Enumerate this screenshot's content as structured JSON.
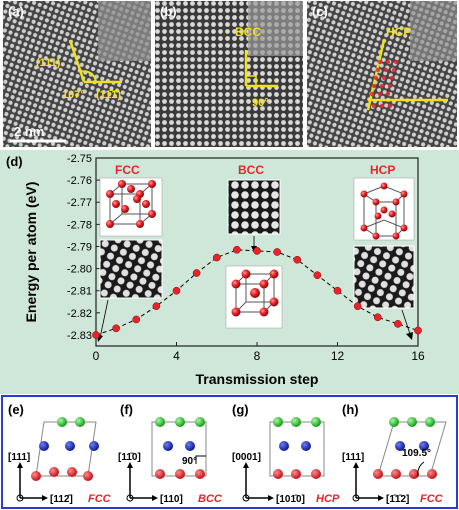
{
  "panels_top": {
    "a": {
      "label": "(a)",
      "plane1": "(111)",
      "plane2": "(11̄1̄)",
      "angle": "107°",
      "scalebar": "2 nm"
    },
    "b": {
      "label": "(b)",
      "phase": "BCC",
      "angle": "90°"
    },
    "c": {
      "label": "(c)",
      "phase": "HCP"
    }
  },
  "panel_d": {
    "label": "(d)",
    "insets": {
      "fcc": "FCC",
      "bcc": "BCC",
      "hcp": "HCP"
    }
  },
  "chart_data": {
    "type": "line",
    "title": "",
    "xlabel": "Transmission step",
    "ylabel": "Energy per atom  (eV)",
    "xlim": [
      0,
      16
    ],
    "ylim": [
      -2.835,
      -2.75
    ],
    "xticks": [
      "0",
      "4",
      "8",
      "12",
      "16"
    ],
    "yticks": [
      "-2.75",
      "-2.76",
      "-2.77",
      "-2.78",
      "-2.79",
      "-2.80",
      "-2.81",
      "-2.82",
      "-2.83"
    ],
    "x": [
      0,
      1,
      2,
      3,
      4,
      5,
      6,
      7,
      8,
      9,
      10,
      11,
      12,
      13,
      14,
      15,
      16
    ],
    "y": [
      -2.83,
      -2.827,
      -2.823,
      -2.817,
      -2.81,
      -2.802,
      -2.795,
      -2.7915,
      -2.792,
      -2.7925,
      -2.796,
      -2.803,
      -2.81,
      -2.817,
      -2.822,
      -2.825,
      -2.828
    ],
    "marker_color": "#e8242a",
    "background": "#cfe7d9"
  },
  "panels_bottom": [
    {
      "label": "(e)",
      "dir_up": "[111]",
      "dir_right": "[112̄]",
      "phase": "FCC"
    },
    {
      "label": "(f)",
      "dir_up": "[11̄0]",
      "dir_right": "[110]",
      "phase": "BCC",
      "angle": "90°"
    },
    {
      "label": "(g)",
      "dir_up": "[0001]",
      "dir_right": "[101̄0]",
      "phase": "HCP"
    },
    {
      "label": "(h)",
      "dir_up": "[111]",
      "dir_right": "[1̄1̄2]",
      "phase": "FCC",
      "angle": "109.5°"
    }
  ],
  "colors": {
    "yellow": "#f2e21a",
    "red": "#e8242a",
    "blue": "#1f2fae",
    "green": "#27c527",
    "frame": "#2b3dd0"
  }
}
